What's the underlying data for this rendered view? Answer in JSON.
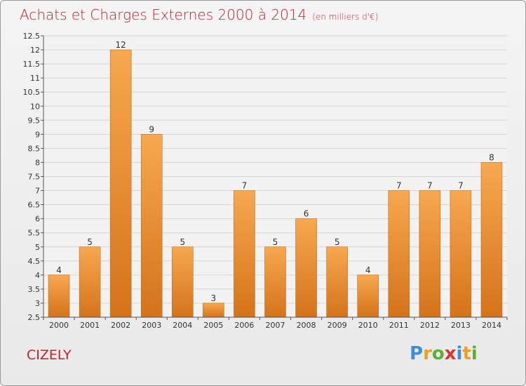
{
  "title": "Achats et Charges Externes 2000 à 2014",
  "subtitle": "(en milliers d'€)",
  "commune": "CIZELY",
  "logo": {
    "letters": [
      "P",
      "r",
      "o",
      "x",
      "i",
      "t",
      "i"
    ],
    "colors": [
      "#3a8fd8",
      "#f0a020",
      "#5cb030",
      "#e03030",
      "#3a8fd8",
      "#f0a020",
      "#5cb030"
    ]
  },
  "colors": {
    "bar_top": "#f7a850",
    "bar_bottom": "#d4731a",
    "accent": "#c8202a"
  },
  "chart_data": {
    "type": "bar",
    "categories": [
      "2000",
      "2001",
      "2002",
      "2003",
      "2004",
      "2005",
      "2006",
      "2007",
      "2008",
      "2009",
      "2010",
      "2011",
      "2012",
      "2013",
      "2014"
    ],
    "values": [
      4,
      5,
      12,
      9,
      5,
      3,
      7,
      5,
      6,
      5,
      4,
      7,
      7,
      7,
      8
    ],
    "data_labels": [
      "4",
      "5",
      "12",
      "9",
      "5",
      "3",
      "7",
      "5",
      "6",
      "5",
      "4",
      "7",
      "7",
      "7",
      "8"
    ],
    "yticks": [
      "2.5",
      "3",
      "3.5",
      "4",
      "4.5",
      "5",
      "5.5",
      "6",
      "6.5",
      "7",
      "7.5",
      "8",
      "8.5",
      "9",
      "9.5",
      "10",
      "10.5",
      "11",
      "11.5",
      "12",
      "12.5"
    ],
    "ylim": [
      2.5,
      12.5
    ],
    "grid": true
  }
}
